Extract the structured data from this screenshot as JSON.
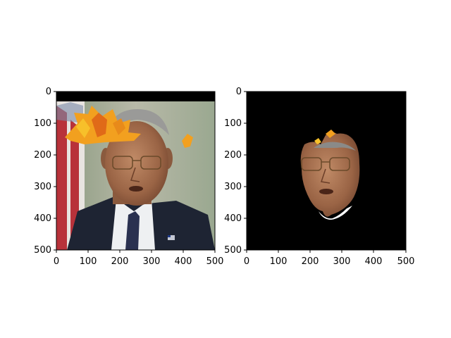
{
  "chart_data": [
    {
      "type": "image",
      "title": "",
      "xlabel": "",
      "ylabel": "",
      "xlim": [
        0,
        500
      ],
      "ylim": [
        500,
        0
      ],
      "x_ticks": [
        "0",
        "100",
        "200",
        "300",
        "400",
        "500"
      ],
      "y_ticks": [
        "0",
        "100",
        "200",
        "300",
        "400",
        "500"
      ],
      "content": "portrait photo with orange autumn-leaf overlay on the forehead"
    },
    {
      "type": "image",
      "title": "",
      "xlabel": "",
      "ylabel": "",
      "xlim": [
        0,
        500
      ],
      "ylim": [
        500,
        0
      ],
      "x_ticks": [
        "0",
        "100",
        "200",
        "300",
        "400",
        "500"
      ],
      "y_ticks": [
        "0",
        "100",
        "200",
        "300",
        "400",
        "500"
      ],
      "content": "face region isolated on black background"
    }
  ],
  "colors": {
    "background": "#ffffff",
    "mask": "#000000",
    "skin": "#a86f4f",
    "leaf": "#f2a01f",
    "suit": "#1e2433",
    "flag_red": "#b8323a"
  }
}
